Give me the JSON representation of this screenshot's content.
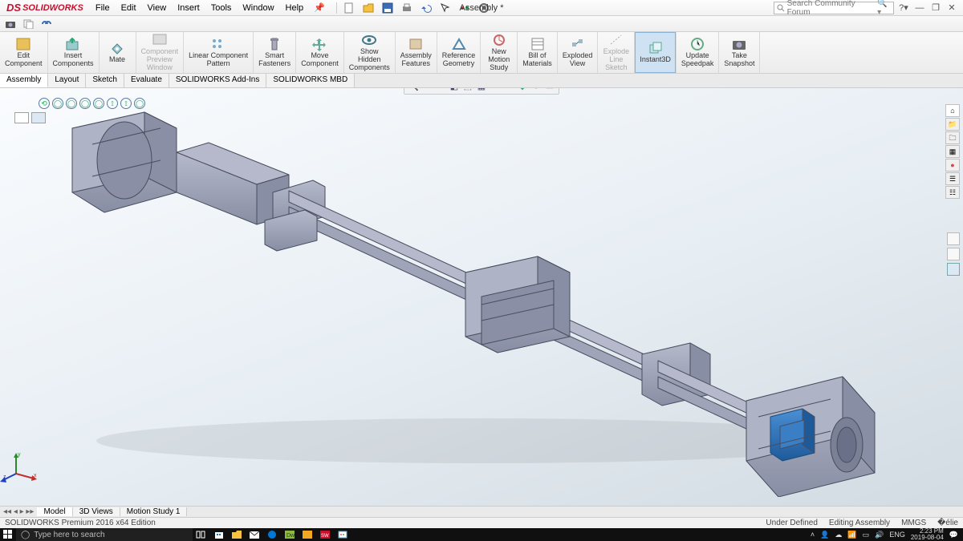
{
  "app": {
    "logo_prefix": "DS",
    "logo_name": "SOLIDWORKS",
    "doc_title": "Assembly *",
    "search_placeholder": "Search Community Forum"
  },
  "menu": {
    "items": [
      "File",
      "Edit",
      "View",
      "Insert",
      "Tools",
      "Window",
      "Help"
    ]
  },
  "ribbon": {
    "groups": [
      {
        "label": "Edit\nComponent",
        "icon": "edit",
        "disabled": false
      },
      {
        "label": "Insert\nComponents",
        "icon": "insert",
        "disabled": false
      },
      {
        "label": "Mate",
        "icon": "mate",
        "disabled": false
      },
      {
        "label": "Component\nPreview\nWindow",
        "icon": "preview",
        "disabled": true
      },
      {
        "label": "Linear Component\nPattern",
        "icon": "pattern",
        "disabled": false
      },
      {
        "label": "Smart\nFasteners",
        "icon": "fastener",
        "disabled": false
      },
      {
        "label": "Move\nComponent",
        "icon": "move",
        "disabled": false
      },
      {
        "label": "Show\nHidden\nComponents",
        "icon": "show",
        "disabled": false
      },
      {
        "label": "Assembly\nFeatures",
        "icon": "afeat",
        "disabled": false
      },
      {
        "label": "Reference\nGeometry",
        "icon": "refgeo",
        "disabled": false
      },
      {
        "label": "New\nMotion\nStudy",
        "icon": "motion",
        "disabled": false
      },
      {
        "label": "Bill of\nMaterials",
        "icon": "bom",
        "disabled": false
      },
      {
        "label": "Exploded\nView",
        "icon": "explode",
        "disabled": false
      },
      {
        "label": "Explode\nLine\nSketch",
        "icon": "expline",
        "disabled": true
      },
      {
        "label": "Instant3D",
        "icon": "instant3d",
        "disabled": false,
        "active": true
      },
      {
        "label": "Update\nSpeedpak",
        "icon": "speedpak",
        "disabled": false
      },
      {
        "label": "Take\nSnapshot",
        "icon": "snapshot",
        "disabled": false
      }
    ]
  },
  "tabs": {
    "items": [
      "Assembly",
      "Layout",
      "Sketch",
      "Evaluate",
      "SOLIDWORKS Add-Ins",
      "SOLIDWORKS MBD"
    ],
    "active": 0
  },
  "bottom_tabs": {
    "items": [
      "Model",
      "3D Views",
      "Motion Study 1"
    ],
    "active": 0
  },
  "status": {
    "left": "SOLIDWORKS Premium 2016 x64 Edition",
    "state": "Under Defined",
    "mode": "Editing Assembly",
    "units": "MMGS"
  },
  "taskbar": {
    "search": "Type here to search",
    "lang": "ENG",
    "time": "2:23 PM",
    "date": "2019-08-04"
  },
  "colors": {
    "model_body": "#9fa4b8",
    "model_edge": "#4a4d5e",
    "model_shadow": "#8e94a7",
    "highlight_part": "#2a6fb3",
    "highlight_edge": "#184c7c",
    "bg_top": "#fafcfe",
    "bg_bot": "#d2dbe2"
  }
}
